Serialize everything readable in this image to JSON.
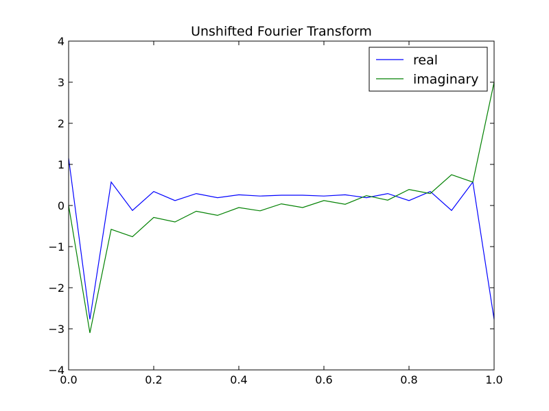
{
  "chart_data": {
    "type": "line",
    "title": "Unshifted Fourier Transform",
    "xlabel": "",
    "ylabel": "",
    "xlim": [
      0.0,
      1.0
    ],
    "ylim": [
      -4,
      4
    ],
    "grid": false,
    "legend_position": "top-right",
    "x_ticks": [
      0.0,
      0.2,
      0.4,
      0.6,
      0.8,
      1.0
    ],
    "x_tick_labels": [
      "0.0",
      "0.2",
      "0.4",
      "0.6",
      "0.8",
      "1.0"
    ],
    "y_ticks": [
      -4,
      -3,
      -2,
      -1,
      0,
      1,
      2,
      3,
      4
    ],
    "y_tick_labels": [
      "−4",
      "−3",
      "−2",
      "−1",
      "0",
      "1",
      "2",
      "3",
      "4"
    ],
    "x": [
      0.0,
      0.05,
      0.1,
      0.15,
      0.2,
      0.25,
      0.3,
      0.35,
      0.4,
      0.45,
      0.5,
      0.55,
      0.6,
      0.65,
      0.7,
      0.75,
      0.8,
      0.85,
      0.9,
      0.95,
      1.0
    ],
    "series": [
      {
        "name": "real",
        "color": "#0000ff",
        "values": [
          1.15,
          -2.77,
          0.57,
          -0.12,
          0.34,
          0.12,
          0.29,
          0.19,
          0.26,
          0.23,
          0.25,
          0.25,
          0.23,
          0.26,
          0.19,
          0.29,
          0.12,
          0.34,
          -0.12,
          0.57,
          -2.77
        ]
      },
      {
        "name": "imaginary",
        "color": "#008000",
        "values": [
          0.0,
          -3.1,
          -0.58,
          -0.76,
          -0.29,
          -0.4,
          -0.14,
          -0.24,
          -0.05,
          -0.13,
          0.04,
          -0.05,
          0.12,
          0.03,
          0.24,
          0.13,
          0.39,
          0.29,
          0.75,
          0.57,
          3.0
        ]
      }
    ]
  }
}
